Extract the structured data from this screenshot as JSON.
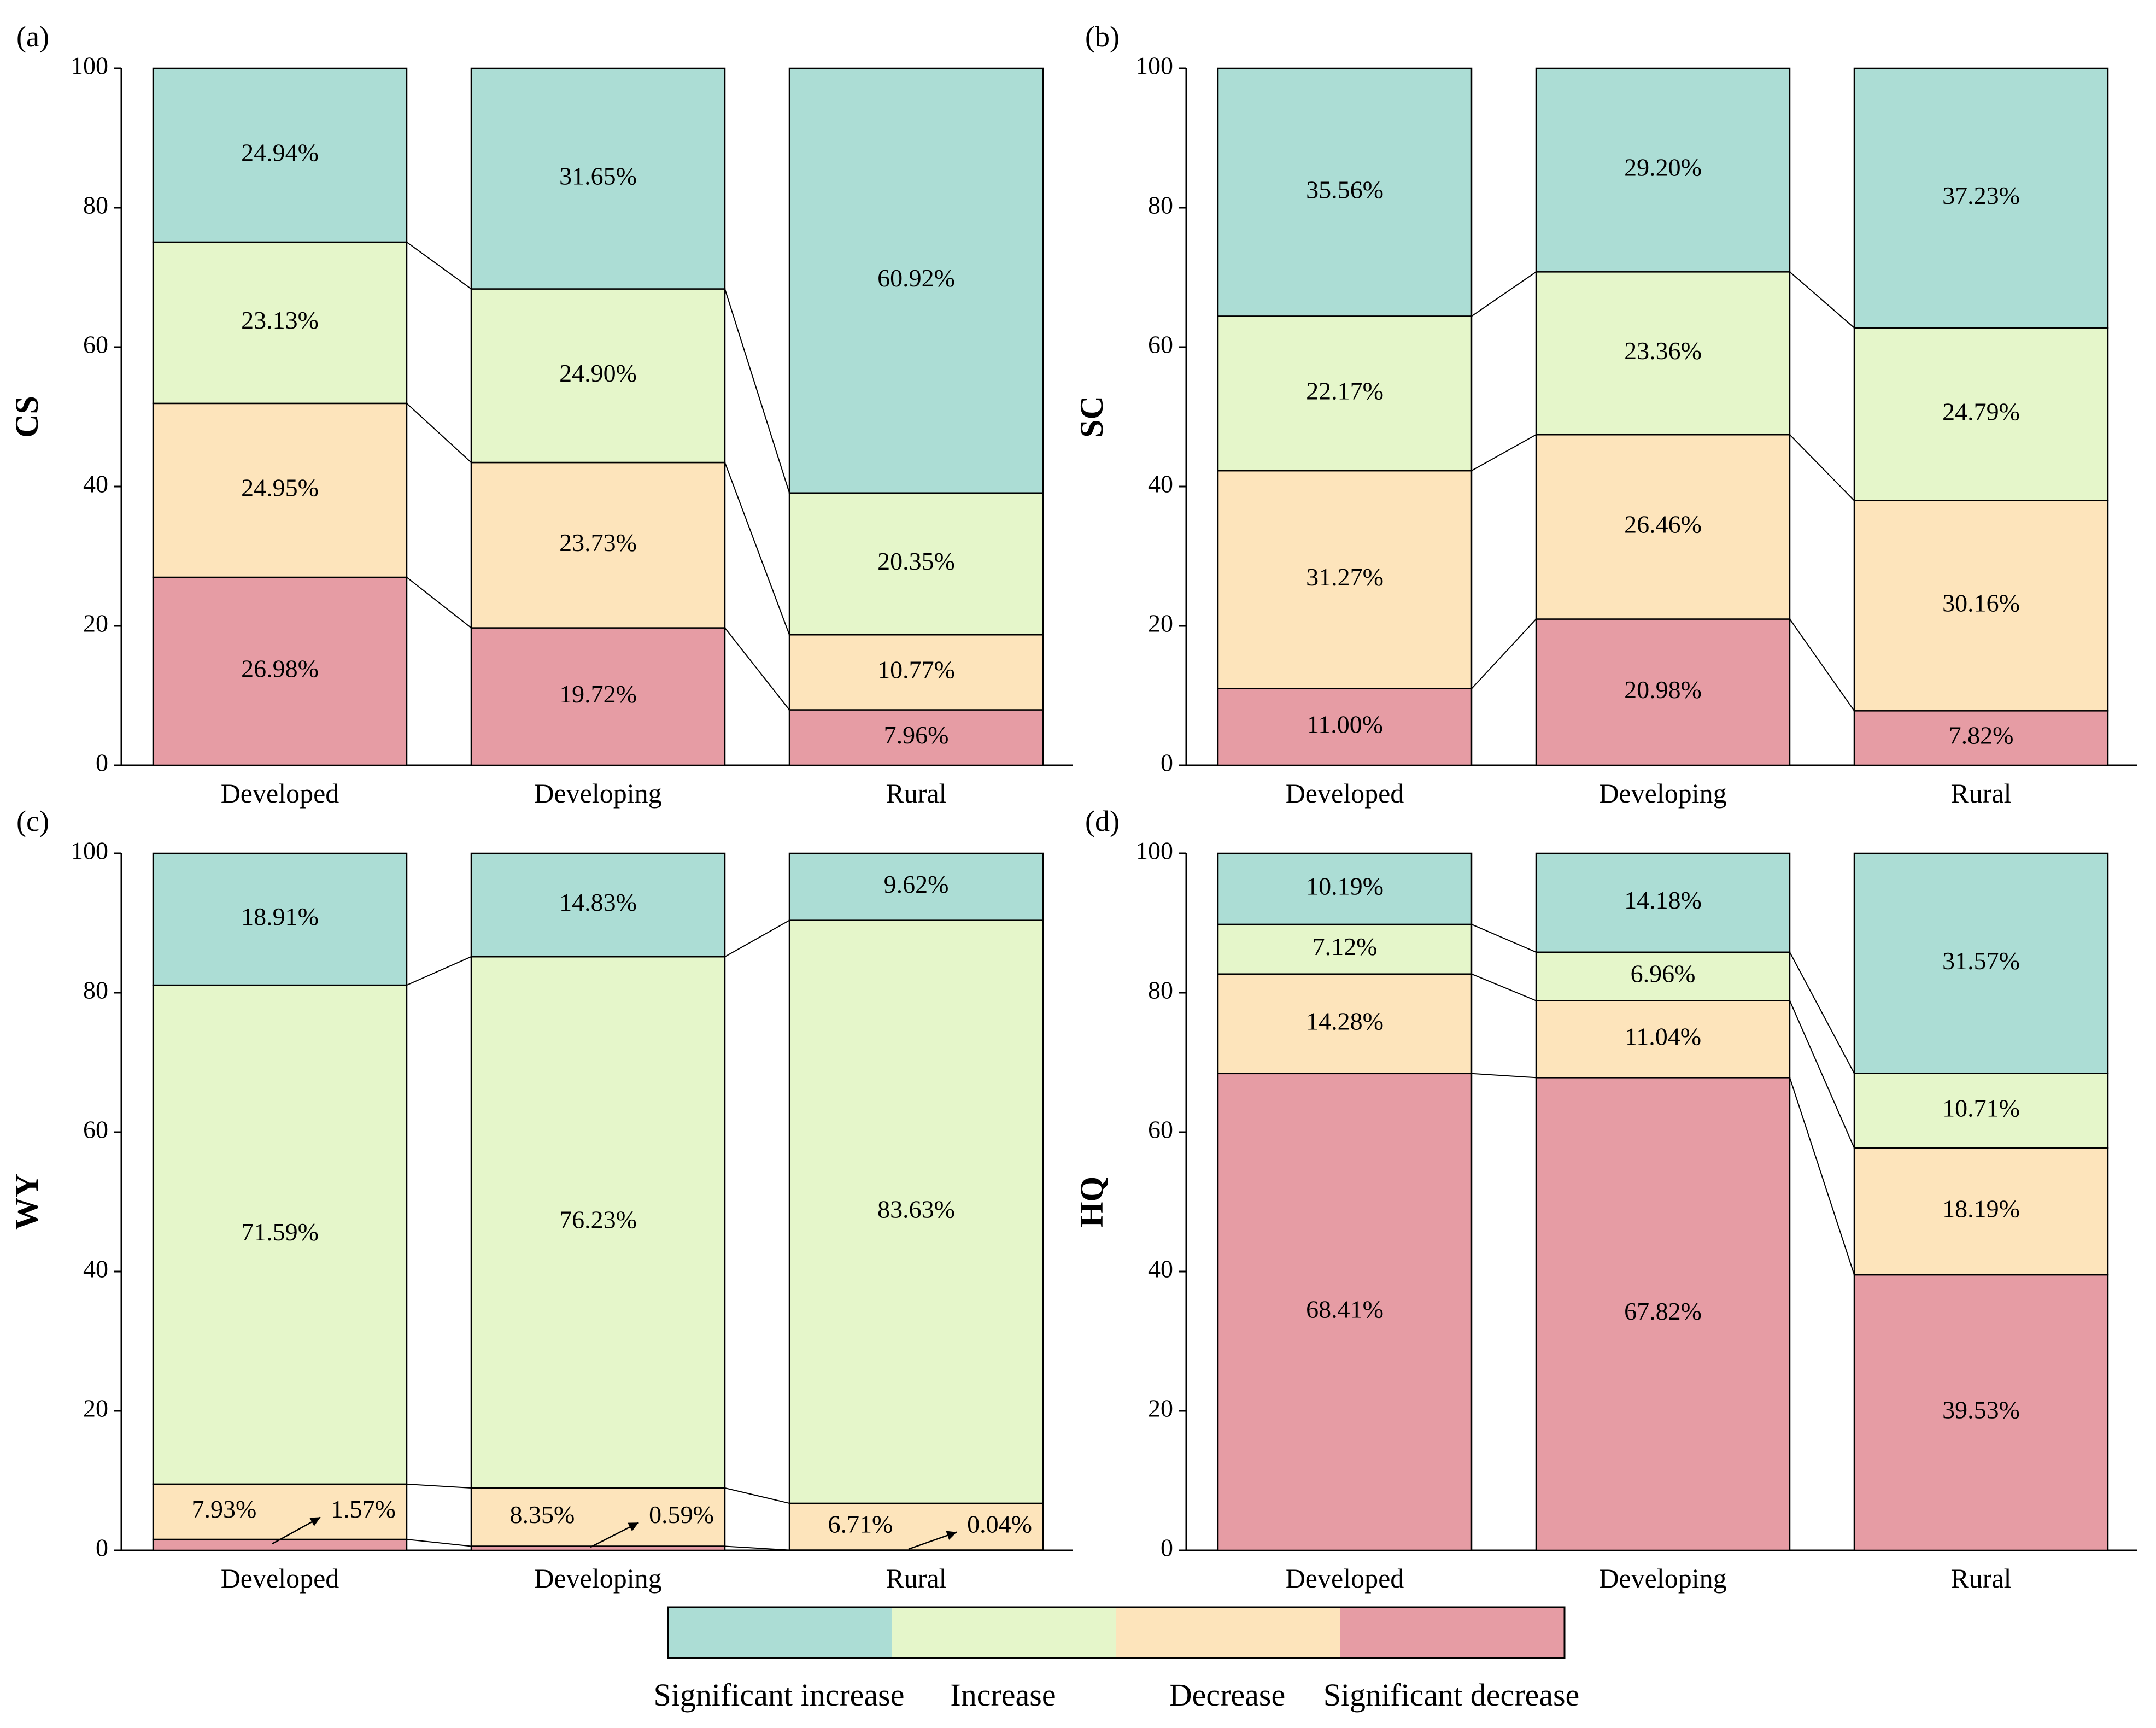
{
  "colors": {
    "significant_increase": "#acddd5",
    "increase": "#e5f6ca",
    "decrease": "#fde4bb",
    "significant_decrease": "#e69ca4"
  },
  "legend": {
    "items": [
      "Significant increase",
      "Increase",
      "Decrease",
      "Significant decrease"
    ]
  },
  "chart_data": [
    {
      "type": "bar",
      "stacked": true,
      "panel": "(a)",
      "ylabel": "CS",
      "ylim": [
        0,
        100
      ],
      "yticks": [
        "0",
        "20",
        "40",
        "60",
        "80",
        "100"
      ],
      "categories": [
        "Developed",
        "Developing",
        "Rural"
      ],
      "series": [
        {
          "name": "Significant decrease",
          "values": [
            26.98,
            19.72,
            7.96
          ],
          "labels": [
            "26.98%",
            "19.72%",
            "7.96%"
          ]
        },
        {
          "name": "Decrease",
          "values": [
            24.95,
            23.73,
            10.77
          ],
          "labels": [
            "24.95%",
            "23.73%",
            "10.77%"
          ]
        },
        {
          "name": "Increase",
          "values": [
            23.13,
            24.9,
            20.35
          ],
          "labels": [
            "23.13%",
            "24.90%",
            "20.35%"
          ]
        },
        {
          "name": "Significant increase",
          "values": [
            24.94,
            31.65,
            60.92
          ],
          "labels": [
            "24.94%",
            "31.65%",
            "60.92%"
          ]
        }
      ]
    },
    {
      "type": "bar",
      "stacked": true,
      "panel": "(b)",
      "ylabel": "SC",
      "ylim": [
        0,
        100
      ],
      "yticks": [
        "0",
        "20",
        "40",
        "60",
        "80",
        "100"
      ],
      "categories": [
        "Developed",
        "Developing",
        "Rural"
      ],
      "series": [
        {
          "name": "Significant decrease",
          "values": [
            11.0,
            20.98,
            7.82
          ],
          "labels": [
            "11.00%",
            "20.98%",
            "7.82%"
          ]
        },
        {
          "name": "Decrease",
          "values": [
            31.27,
            26.46,
            30.16
          ],
          "labels": [
            "31.27%",
            "26.46%",
            "30.16%"
          ]
        },
        {
          "name": "Increase",
          "values": [
            22.17,
            23.36,
            24.79
          ],
          "labels": [
            "22.17%",
            "23.36%",
            "24.79%"
          ]
        },
        {
          "name": "Significant increase",
          "values": [
            35.56,
            29.2,
            37.23
          ],
          "labels": [
            "35.56%",
            "29.20%",
            "37.23%"
          ]
        }
      ]
    },
    {
      "type": "bar",
      "stacked": true,
      "panel": "(c)",
      "ylabel": "WY",
      "ylim": [
        0,
        100
      ],
      "yticks": [
        "0",
        "20",
        "40",
        "60",
        "80",
        "100"
      ],
      "categories": [
        "Developed",
        "Developing",
        "Rural"
      ],
      "series": [
        {
          "name": "Significant decrease",
          "values": [
            1.57,
            0.59,
            0.04
          ],
          "labels": [
            "1.57%",
            "0.59%",
            "0.04%"
          ]
        },
        {
          "name": "Decrease",
          "values": [
            7.93,
            8.35,
            6.71
          ],
          "labels": [
            "7.93%",
            "8.35%",
            "6.71%"
          ]
        },
        {
          "name": "Increase",
          "values": [
            71.59,
            76.23,
            83.63
          ],
          "labels": [
            "71.59%",
            "76.23%",
            "83.63%"
          ]
        },
        {
          "name": "Significant increase",
          "values": [
            18.91,
            14.83,
            9.62
          ],
          "labels": [
            "18.91%",
            "14.83%",
            "9.62%"
          ]
        }
      ]
    },
    {
      "type": "bar",
      "stacked": true,
      "panel": "(d)",
      "ylabel": "HQ",
      "ylim": [
        0,
        100
      ],
      "yticks": [
        "0",
        "20",
        "40",
        "60",
        "80",
        "100"
      ],
      "categories": [
        "Developed",
        "Developing",
        "Rural"
      ],
      "series": [
        {
          "name": "Significant decrease",
          "values": [
            68.41,
            67.82,
            39.53
          ],
          "labels": [
            "68.41%",
            "67.82%",
            "39.53%"
          ]
        },
        {
          "name": "Decrease",
          "values": [
            14.28,
            11.04,
            18.19
          ],
          "labels": [
            "14.28%",
            "11.04%",
            "18.19%"
          ]
        },
        {
          "name": "Increase",
          "values": [
            7.12,
            6.96,
            10.71
          ],
          "labels": [
            "7.12%",
            "6.96%",
            "10.71%"
          ]
        },
        {
          "name": "Significant increase",
          "values": [
            10.19,
            14.18,
            31.57
          ],
          "labels": [
            "10.19%",
            "14.18%",
            "31.57%"
          ]
        }
      ]
    }
  ]
}
